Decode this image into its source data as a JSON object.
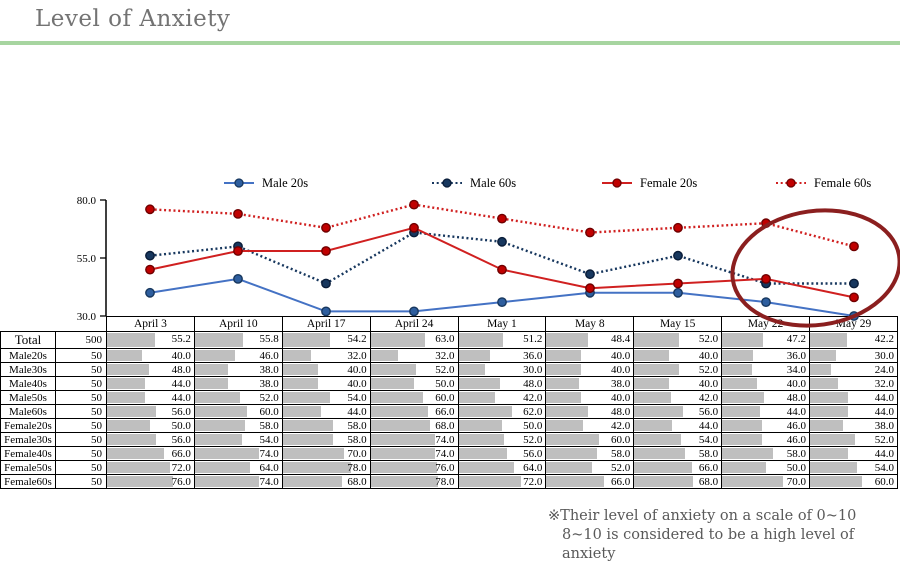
{
  "title": "Level of Anxiety",
  "accent_color": "#A7D5A0",
  "annotation_color": "#8B1F1F",
  "bar_color": "#BFBFBF",
  "footnote": {
    "line1": "※Their level of anxiety on a scale of 0~10",
    "line2": "8~10 is considered to be a high level of anxiety"
  },
  "chart_data": {
    "type": "line",
    "title": "",
    "xlabel": "",
    "ylabel": "",
    "categories": [
      "April 3",
      "April 10",
      "April 17",
      "April 24",
      "May 1",
      "May 8",
      "May 15",
      "May 22",
      "May 29"
    ],
    "series": [
      {
        "name": "Male 20s",
        "style": "solid",
        "color": "#4472C4",
        "marker_fill": "#2E5E9E",
        "marker_stroke": "#17375E",
        "values": [
          40.0,
          46.0,
          32.0,
          32.0,
          36.0,
          40.0,
          40.0,
          36.0,
          30.0
        ]
      },
      {
        "name": "Male 60s",
        "style": "dotted",
        "color": "#17375E",
        "marker_fill": "#17375E",
        "marker_stroke": "#091C38",
        "values": [
          56.0,
          60.0,
          44.0,
          66.0,
          62.0,
          48.0,
          56.0,
          44.0,
          44.0
        ]
      },
      {
        "name": "Female 20s",
        "style": "solid",
        "color": "#D02020",
        "marker_fill": "#C00000",
        "marker_stroke": "#700000",
        "values": [
          50.0,
          58.0,
          58.0,
          68.0,
          50.0,
          42.0,
          44.0,
          46.0,
          38.0
        ]
      },
      {
        "name": "Female 60s",
        "style": "dotted",
        "color": "#D02020",
        "marker_fill": "#C00000",
        "marker_stroke": "#700000",
        "values": [
          76.0,
          74.0,
          68.0,
          78.0,
          72.0,
          66.0,
          68.0,
          70.0,
          60.0
        ]
      }
    ],
    "yticks": [
      30.0,
      55.0,
      80.0
    ],
    "ylim": [
      30,
      80
    ],
    "grid": false,
    "legend_position": "top",
    "annotation": "dark red ellipse circling the May 22 and May 29 data points"
  },
  "table": {
    "columns": [
      "April 3",
      "April 10",
      "April 17",
      "April 24",
      "May 1",
      "May 8",
      "May 15",
      "May 22",
      "May 29"
    ],
    "rows": [
      {
        "label": "Total",
        "n": "500",
        "values": [
          55.2,
          55.8,
          54.2,
          63.0,
          51.2,
          48.4,
          52.0,
          47.2,
          42.2
        ]
      },
      {
        "label": "Male20s",
        "n": "50",
        "values": [
          40.0,
          46.0,
          32.0,
          32.0,
          36.0,
          40.0,
          40.0,
          36.0,
          30.0
        ]
      },
      {
        "label": "Male30s",
        "n": "50",
        "values": [
          48.0,
          38.0,
          40.0,
          52.0,
          30.0,
          40.0,
          52.0,
          34.0,
          24.0
        ]
      },
      {
        "label": "Male40s",
        "n": "50",
        "values": [
          44.0,
          38.0,
          40.0,
          50.0,
          48.0,
          38.0,
          40.0,
          40.0,
          32.0
        ]
      },
      {
        "label": "Male50s",
        "n": "50",
        "values": [
          44.0,
          52.0,
          54.0,
          60.0,
          42.0,
          40.0,
          42.0,
          48.0,
          44.0
        ]
      },
      {
        "label": "Male60s",
        "n": "50",
        "values": [
          56.0,
          60.0,
          44.0,
          66.0,
          62.0,
          48.0,
          56.0,
          44.0,
          44.0
        ]
      },
      {
        "label": "Female20s",
        "n": "50",
        "values": [
          50.0,
          58.0,
          58.0,
          68.0,
          50.0,
          42.0,
          44.0,
          46.0,
          38.0
        ]
      },
      {
        "label": "Female30s",
        "n": "50",
        "values": [
          56.0,
          54.0,
          58.0,
          74.0,
          52.0,
          60.0,
          54.0,
          46.0,
          52.0
        ]
      },
      {
        "label": "Female40s",
        "n": "50",
        "values": [
          66.0,
          74.0,
          70.0,
          74.0,
          56.0,
          58.0,
          58.0,
          58.0,
          44.0
        ]
      },
      {
        "label": "Female50s",
        "n": "50",
        "values": [
          72.0,
          64.0,
          78.0,
          76.0,
          64.0,
          52.0,
          66.0,
          50.0,
          54.0
        ]
      },
      {
        "label": "Female60s",
        "n": "50",
        "values": [
          76.0,
          74.0,
          68.0,
          78.0,
          72.0,
          66.0,
          68.0,
          70.0,
          60.0
        ]
      }
    ]
  }
}
